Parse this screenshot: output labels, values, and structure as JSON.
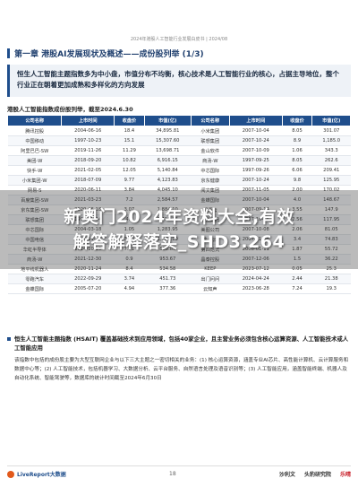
{
  "header": {
    "running_head": "2024年港股人工智能行业发展白皮书 | 2024/08",
    "chapter_title": "第一章 港股AI发展现状及概述——成份股列举 (1/3)"
  },
  "summary": {
    "text": "恒生人工智能主题指数多为中小盘，市值分布不均衡，核心技术是人工智能行业的核心，占据主导地位，整个行业正在朝着更加成熟和多样化的方向发展"
  },
  "table": {
    "caption": "港股人工智能指数成份股列举，截至2024.6.30",
    "columns": [
      "公司名称",
      "上市时间",
      "收盘价",
      "市值(亿)",
      "公司名称",
      "上市时间",
      "收盘价",
      "市值(亿)"
    ],
    "rows": [
      [
        "腾讯控股",
        "2004-06-16",
        "18.4",
        "34,895.81",
        "小米集团",
        "2007-10-04",
        "8.05",
        "301.07"
      ],
      [
        "中国移动",
        "1997-10-23",
        "15.1",
        "15,307.60",
        "联想集团",
        "2007-10-24",
        "8.9",
        "1,185.0"
      ],
      [
        "阿里巴巴-SW",
        "2019-11-26",
        "11.29",
        "13,698.71",
        "金山软件",
        "2007-10-09",
        "1.06",
        "343.3"
      ],
      [
        "美团-W",
        "2018-09-20",
        "10.82",
        "6,916.15",
        "商汤-W",
        "1997-09-25",
        "8.05",
        "262.6"
      ],
      [
        "快手-W",
        "2021-02-05",
        "12.05",
        "5,140.84",
        "中芯国际",
        "1997-09-26",
        "6.06",
        "209.41"
      ],
      [
        "小米集团-W",
        "2018-07-09",
        "9.77",
        "4,123.83",
        "京东健康",
        "2007-10-24",
        "9.8",
        "125.95"
      ],
      [
        "网易-S",
        "2020-06-11",
        "3.84",
        "4,045.10",
        "阅文集团",
        "2007-11-05",
        "2.00",
        "170.02"
      ],
      [
        "百度集团-SW",
        "2021-03-23",
        "7.2",
        "2,584.57",
        "金蝶国际",
        "2007-10-04",
        "4.0",
        "148.67"
      ],
      [
        "京东集团-SW",
        "2020-06-18",
        "3.07",
        "1,884.10",
        "明源云",
        "2007-09-14",
        "3.55",
        "147.9"
      ],
      [
        "联想集团",
        "1994-02-14",
        "4.7",
        "1,415.36",
        "微盟集团",
        "2007-10-18",
        "2.56",
        "117.95"
      ],
      [
        "中芯国际",
        "2004-03-18",
        "1.05",
        "1,283.95",
        "美图公司",
        "2007-10-08",
        "2.06",
        "81.05"
      ],
      [
        "中国电信",
        "2002-11-15",
        "3.35",
        "1,132.10",
        "金山云",
        "2007-11-08",
        "3.4",
        "74.83"
      ],
      [
        "华虹半导体",
        "2014-10-15",
        "7.21",
        "838.85",
        "第四范式",
        "2008-01-11",
        "1.87",
        "55.72"
      ],
      [
        "商汤-W",
        "2021-12-30",
        "0.9",
        "953.67",
        "晶泰控股",
        "2007-12-06",
        "1.5",
        "36.22"
      ],
      [
        "地平线机器人",
        "2020-11-24",
        "8.4",
        "534.58",
        "KEEP",
        "2023-07-12",
        "0.05",
        "25.3"
      ],
      [
        "零跑汽车",
        "2022-09-29",
        "3.74",
        "451.73",
        "出门问问",
        "2024-04-24",
        "2.44",
        "21.38"
      ],
      [
        "金蝶国际",
        "2005-07-20",
        "4.94",
        "377.36",
        "云知声",
        "2023-06-28",
        "7.24",
        "19.3"
      ]
    ]
  },
  "watermark": {
    "line1": "新奥门2024年资料大全,有效",
    "line2": "解答解释落实_SHD3.264"
  },
  "note": {
    "heading": "恒生人工智能主题指数 (HSAIT) 覆盖基础技术到应用领域，包括40家企业，且主营业务必须包含核心运算资源、人工智能技术或人工智能应用",
    "body": "该指数中包括的成份股主要为大型互联网企业与以下三大主题之一密切相关的业务：(1) 核心运算资源，涵盖专业AI芯片、高性能计算机、云计算服务和数据中心等；(2) 人工智能技术，包括机器学习、大数据分析、云平台服务、自然语言处理及语音识别等；(3) 人工智能应用，涵盖智能终端、机器人及自动化系统、智能驾驶等，数据库的统计时间截至2024年6月30日"
  },
  "footer": {
    "brand_left": "LiveReport大数据",
    "page_number": "18",
    "brand_right_1": "沙利文",
    "brand_right_2": "头豹研究院",
    "brand_right_3": "乐晴"
  }
}
